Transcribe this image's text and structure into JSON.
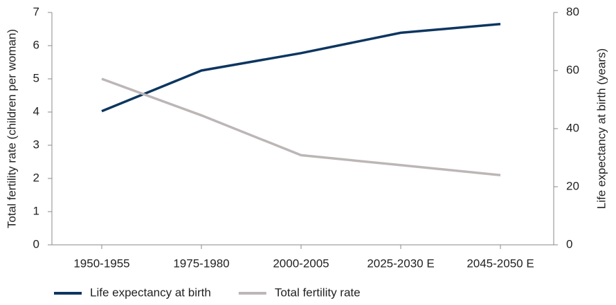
{
  "chart_data": {
    "type": "line",
    "categories": [
      "1950-1955",
      "1975-1980",
      "2000-2005",
      "2025-2030 E",
      "2045-2050 E"
    ],
    "series": [
      {
        "name": "Life expectancy at birth",
        "color": "#0d3660",
        "axis": "y2",
        "values": [
          46,
          60,
          66,
          73,
          76
        ]
      },
      {
        "name": "Total fertility rate",
        "color": "#bdb6b6",
        "values": [
          5.0,
          3.9,
          2.7,
          2.4,
          2.1
        ]
      }
    ],
    "ylabel": "Total fertility rate (children per woman)",
    "y2label": "Life expectancy at birth (years)",
    "ylim": [
      0,
      7
    ],
    "yticks": [
      0,
      1,
      2,
      3,
      4,
      5,
      6,
      7
    ],
    "y2lim": [
      0,
      80
    ],
    "y2ticks": [
      0,
      20,
      40,
      60,
      80
    ],
    "legend": "bottom"
  }
}
